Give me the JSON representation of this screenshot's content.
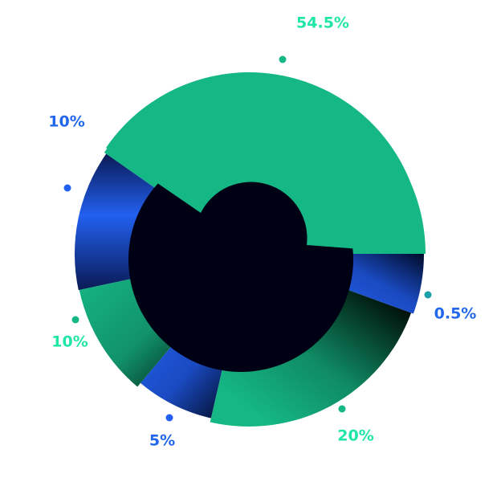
{
  "chart_data": {
    "type": "pie",
    "variant": "variable-radius donut",
    "slices": [
      {
        "label": "54.5%",
        "value": 54.5,
        "color": "#15b885",
        "style": "green"
      },
      {
        "label": "0.5%",
        "value": 0.5,
        "color": "#2260f0",
        "style": "blue"
      },
      {
        "label": "20%",
        "value": 20,
        "color": "#15b885",
        "style": "green"
      },
      {
        "label": "5%",
        "value": 5,
        "color": "#2260f0",
        "style": "blue"
      },
      {
        "label": "10%",
        "value": 10,
        "color": "#15b885",
        "style": "green"
      },
      {
        "label": "10%",
        "value": 10,
        "color": "#2260f0",
        "style": "blue"
      }
    ],
    "label_colors": {
      "green": "#1fe6a6",
      "blue": "#2266ee"
    },
    "center_color": "#000014",
    "legend": "none"
  }
}
